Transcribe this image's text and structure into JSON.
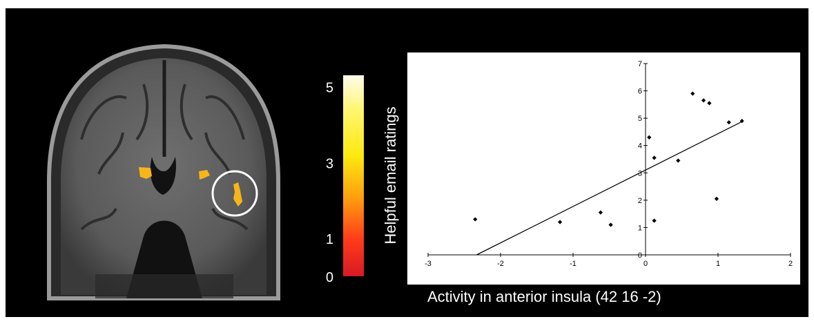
{
  "colorbar": {
    "ticks": [
      "5",
      "3",
      "1",
      "0"
    ],
    "tick_values": [
      5,
      3,
      1,
      0
    ],
    "range": [
      0,
      5.3
    ],
    "colors": [
      "#fffcee",
      "#fff56b",
      "#fde910",
      "#ff9a0f",
      "#ff3a1a",
      "#d71a25"
    ]
  },
  "brain": {
    "highlight_color": "#ffffff",
    "activation_color": "#f7b51a"
  },
  "chart_data": {
    "type": "scatter",
    "title": "",
    "xlabel": "Activity in anterior insula (42 16 -2)",
    "ylabel": "Helpful email ratings",
    "xlim": [
      -3,
      2
    ],
    "ylim": [
      0,
      7
    ],
    "xticks": [
      "-3",
      "-2",
      "-1",
      "0",
      "1",
      "2"
    ],
    "xtick_values": [
      -3,
      -2,
      -1,
      0,
      1,
      2
    ],
    "yticks": [
      "0",
      "1",
      "2",
      "3",
      "4",
      "5",
      "6",
      "7"
    ],
    "ytick_values": [
      0,
      1,
      2,
      3,
      4,
      5,
      6,
      7
    ],
    "grid": false,
    "points": [
      {
        "x": -2.35,
        "y": 1.3
      },
      {
        "x": -1.18,
        "y": 1.2
      },
      {
        "x": -0.62,
        "y": 1.55
      },
      {
        "x": -0.48,
        "y": 1.1
      },
      {
        "x": 0.05,
        "y": 4.3
      },
      {
        "x": 0.12,
        "y": 3.55
      },
      {
        "x": 0.12,
        "y": 1.25
      },
      {
        "x": 0.45,
        "y": 3.45
      },
      {
        "x": 0.65,
        "y": 5.9
      },
      {
        "x": 0.8,
        "y": 5.65
      },
      {
        "x": 0.88,
        "y": 5.55
      },
      {
        "x": 0.98,
        "y": 2.05
      },
      {
        "x": 1.15,
        "y": 4.85
      },
      {
        "x": 1.33,
        "y": 4.9
      }
    ],
    "trendline": {
      "x": [
        -2.33,
        1.35
      ],
      "y": [
        0,
        4.9
      ]
    }
  }
}
